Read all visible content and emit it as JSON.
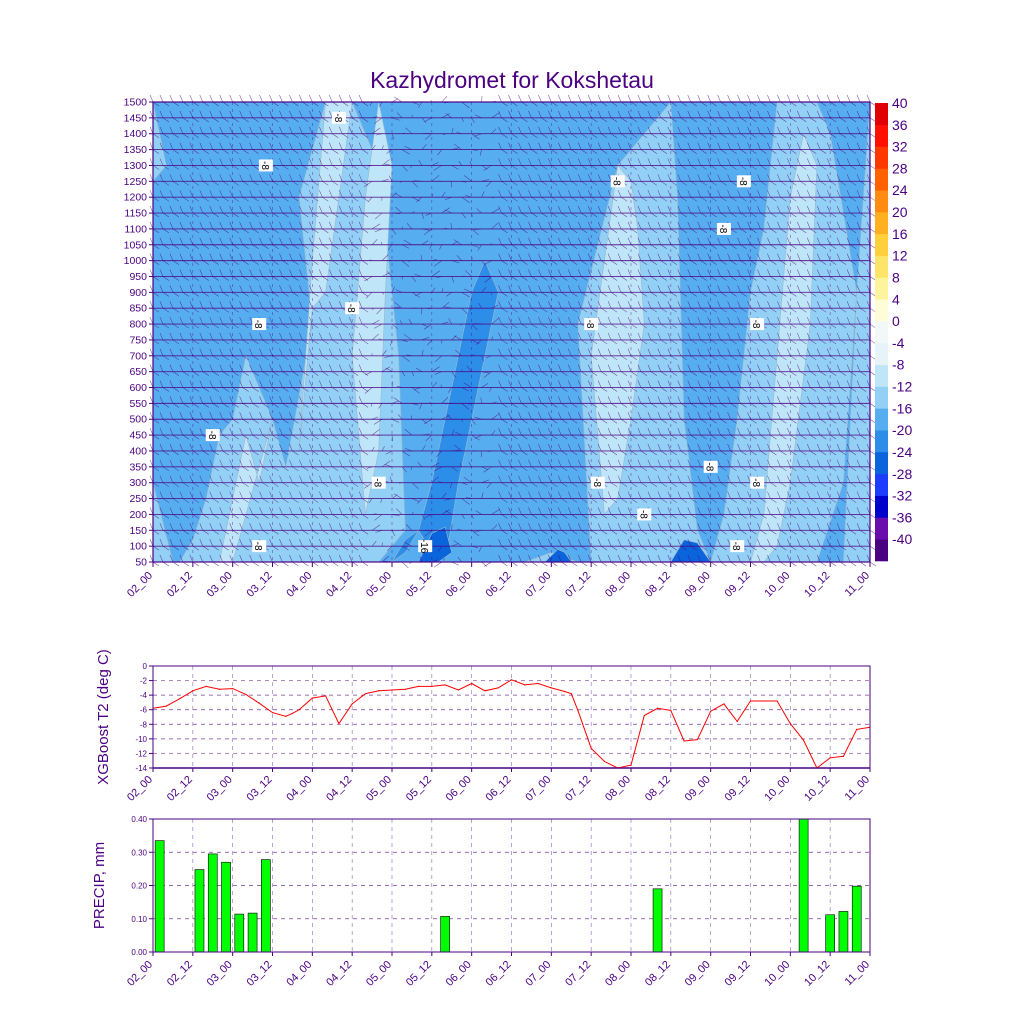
{
  "title": "Kazhydromet for Kokshetau",
  "x_ticks": [
    "02_00",
    "02_12",
    "03_00",
    "03_12",
    "04_00",
    "04_12",
    "05_00",
    "05_12",
    "06_00",
    "06_12",
    "07_00",
    "07_12",
    "08_00",
    "08_12",
    "09_00",
    "09_12",
    "10_00",
    "10_12",
    "11_00"
  ],
  "colors": {
    "axis": "#4b0082",
    "text": "#4b0082",
    "t2_line": "#ff0000",
    "bar": "#00ff00",
    "grid": "#4b0082"
  },
  "chart_data": [
    {
      "type": "heatmap",
      "name": "cross-section",
      "title": "Kazhydromet for Kokshetau",
      "ylabel": "",
      "y_levels": [
        50,
        100,
        150,
        200,
        250,
        300,
        350,
        400,
        450,
        500,
        550,
        600,
        650,
        700,
        750,
        800,
        850,
        900,
        950,
        1000,
        1050,
        1100,
        1150,
        1200,
        1250,
        1300,
        1350,
        1400,
        1450,
        1500
      ],
      "ylim": [
        50,
        1500
      ],
      "xlim": [
        0,
        108
      ],
      "colorbar": {
        "boundaries": [
          -40,
          -36,
          -32,
          -28,
          -24,
          -20,
          -16,
          -12,
          -8,
          -4,
          0,
          4,
          8,
          12,
          16,
          20,
          24,
          28,
          32,
          36,
          40
        ],
        "labels": [
          "-40",
          "-36",
          "-32",
          "-28",
          "-24",
          "-20",
          "-16",
          "-12",
          "-8",
          "-4",
          "0",
          "4",
          "8",
          "12",
          "16",
          "20",
          "24",
          "28",
          "32",
          "36",
          "40"
        ],
        "colors": [
          "#4b0082",
          "#6a0dad",
          "#0000cd",
          "#1e3cff",
          "#0a64dc",
          "#2c8ee8",
          "#56aef0",
          "#92d0f5",
          "#bfe6f8",
          "#e6f4fa",
          "#f2f8f8",
          "#fffcd8",
          "#fff49e",
          "#ffe46a",
          "#ffd03c",
          "#ffb020",
          "#ff8c10",
          "#ff6000",
          "#ff3800",
          "#ff1000",
          "#e00000"
        ]
      },
      "contour_labels": [
        {
          "hour": 9,
          "level": 450,
          "text": "-8"
        },
        {
          "hour": 16,
          "level": 800,
          "text": "-8"
        },
        {
          "hour": 17,
          "level": 1300,
          "text": "-8"
        },
        {
          "hour": 16,
          "level": 100,
          "text": "-8"
        },
        {
          "hour": 28,
          "level": 1450,
          "text": "-8"
        },
        {
          "hour": 30,
          "level": 850,
          "text": "-8"
        },
        {
          "hour": 34,
          "level": 300,
          "text": "-8"
        },
        {
          "hour": 41,
          "level": 100,
          "text": "-16"
        },
        {
          "hour": 66,
          "level": 800,
          "text": "-8"
        },
        {
          "hour": 67,
          "level": 300,
          "text": "-8"
        },
        {
          "hour": 70,
          "level": 1250,
          "text": "-8"
        },
        {
          "hour": 74,
          "level": 200,
          "text": "-8"
        },
        {
          "hour": 84,
          "level": 350,
          "text": "-8"
        },
        {
          "hour": 86,
          "level": 1100,
          "text": "-8"
        },
        {
          "hour": 88,
          "level": 100,
          "text": "-8"
        },
        {
          "hour": 89,
          "level": 1250,
          "text": "-8"
        },
        {
          "hour": 91,
          "level": 800,
          "text": "-8"
        },
        {
          "hour": 91,
          "level": 300,
          "text": "-8"
        }
      ]
    },
    {
      "type": "line",
      "name": "t2",
      "title": "",
      "xlabel": "",
      "ylabel": "XGBoost T2 (deg C)",
      "ylim": [
        -14,
        0
      ],
      "y_ticks": [
        "0",
        "-2",
        "-4",
        "-6",
        "-8",
        "-10",
        "-12",
        "-14"
      ],
      "x": [
        0,
        2,
        4,
        6,
        8,
        10,
        12,
        14,
        16,
        18,
        20,
        21,
        22,
        24,
        26,
        28,
        30,
        32,
        34,
        36,
        38,
        40,
        42,
        44,
        46,
        48,
        50,
        52,
        54,
        56,
        58,
        60,
        62,
        63,
        64,
        66,
        68,
        70,
        72,
        74,
        76,
        78,
        80,
        82,
        84,
        86,
        88,
        90,
        92,
        94,
        96,
        98,
        100,
        102,
        104,
        106,
        108
      ],
      "values": [
        -5.8,
        -5.5,
        -4.5,
        -3.4,
        -2.8,
        -3.2,
        -3.1,
        -3.9,
        -5.1,
        -6.4,
        -6.9,
        -6.5,
        -6.0,
        -4.4,
        -4.1,
        -7.9,
        -5.2,
        -3.8,
        -3.4,
        -3.3,
        -3.2,
        -2.8,
        -2.8,
        -2.6,
        -3.3,
        -2.4,
        -3.4,
        -3.0,
        -1.9,
        -2.6,
        -2.4,
        -3.0,
        -3.5,
        -3.8,
        -6.1,
        -11.3,
        -13.1,
        -14.0,
        -13.6,
        -6.8,
        -5.8,
        -6.1,
        -10.3,
        -10.1,
        -6.2,
        -5.2,
        -7.6,
        -4.8,
        -4.8,
        -4.8,
        -7.9,
        -10.2,
        -14.0,
        -12.6,
        -12.4,
        -8.7,
        -8.4
      ],
      "series_color": "#ff0000"
    },
    {
      "type": "bar",
      "name": "precip",
      "title": "",
      "xlabel": "",
      "ylabel": "PRECIP, mm",
      "ylim": [
        0,
        0.4
      ],
      "y_ticks": [
        "0.00",
        "0.10",
        "0.20",
        "0.30",
        "0.40"
      ],
      "x": [
        1,
        7,
        9,
        11,
        13,
        15,
        17,
        44,
        76,
        98,
        102,
        104,
        106
      ],
      "values": [
        0.335,
        0.248,
        0.295,
        0.27,
        0.114,
        0.117,
        0.278,
        0.107,
        0.19,
        0.4,
        0.112,
        0.122,
        0.198
      ],
      "bar_color": "#00ff00"
    }
  ]
}
